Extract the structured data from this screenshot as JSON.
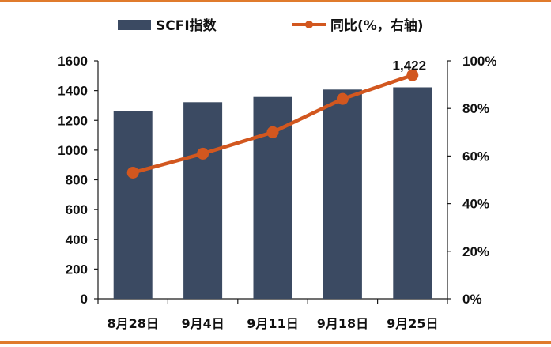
{
  "chart_data": {
    "type": "bar+line",
    "categories": [
      "8月28日",
      "9月4日",
      "9月11日",
      "9月18日",
      "9月25日"
    ],
    "series": [
      {
        "name": "SCFI指数",
        "type": "bar",
        "axis": "left",
        "color": "#3B4A62",
        "values": [
          1262,
          1322,
          1357,
          1407,
          1422
        ]
      },
      {
        "name": "同比(%，右轴)",
        "type": "line",
        "axis": "right",
        "color": "#D2571F",
        "values": [
          53,
          61,
          70,
          84,
          94
        ]
      }
    ],
    "annotations": [
      {
        "series": 0,
        "index": 4,
        "text": "1,422"
      }
    ],
    "left_axis": {
      "min": 0,
      "max": 1600,
      "ticks": [
        "0",
        "200",
        "400",
        "600",
        "800",
        "1000",
        "1200",
        "1400",
        "1600"
      ]
    },
    "right_axis": {
      "min": 0,
      "max": 100,
      "unit": "%",
      "ticks": [
        "0%",
        "20%",
        "40%",
        "60%",
        "80%",
        "100%"
      ]
    },
    "legend_position": "top",
    "grid": false
  },
  "colors": {
    "frame": "#E07B2C"
  }
}
